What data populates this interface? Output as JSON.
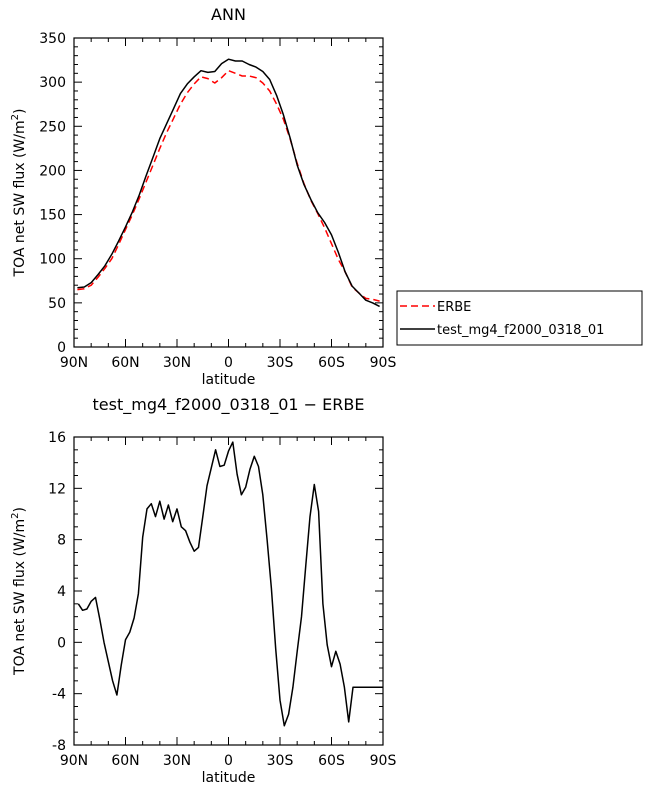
{
  "chart_data": [
    {
      "type": "line",
      "title": "ANN",
      "xlabel": "latitude",
      "ylabel": "TOA net SW flux (W/m²)",
      "xlim": [
        90,
        -90
      ],
      "ylim": [
        0,
        350
      ],
      "x_ticks": [
        {
          "value": 90,
          "label": "90N"
        },
        {
          "value": 60,
          "label": "60N"
        },
        {
          "value": 30,
          "label": "30N"
        },
        {
          "value": 0,
          "label": "0"
        },
        {
          "value": -30,
          "label": "30S"
        },
        {
          "value": -60,
          "label": "60S"
        },
        {
          "value": -90,
          "label": "90S"
        }
      ],
      "y_ticks": [
        0,
        50,
        100,
        150,
        200,
        250,
        300,
        350
      ],
      "legend_position": "right",
      "series": [
        {
          "name": "ERBE",
          "color": "#ff0000",
          "dash": "dashed",
          "x": [
            88,
            84,
            80,
            76,
            72,
            68,
            64,
            60,
            56,
            52,
            48,
            44,
            40,
            36,
            32,
            28,
            24,
            20,
            16,
            12,
            8,
            4,
            0,
            -4,
            -8,
            -12,
            -16,
            -20,
            -24,
            -28,
            -32,
            -36,
            -40,
            -44,
            -48,
            -52,
            -56,
            -60,
            -64,
            -68,
            -72,
            -76,
            -80,
            -84,
            -88
          ],
          "y": [
            65,
            66,
            70,
            79,
            89,
            100,
            116,
            133,
            150,
            168,
            187,
            206,
            225,
            243,
            259,
            275,
            288,
            298,
            306,
            304,
            299,
            305,
            313,
            310,
            307,
            307,
            305,
            299,
            290,
            275,
            258,
            235,
            208,
            185,
            166,
            151,
            135,
            117,
            99,
            85,
            68,
            61,
            55,
            54,
            52
          ]
        },
        {
          "name": "test_mg4_f2000_0318_01",
          "color": "#000000",
          "dash": "solid",
          "x": [
            88,
            84,
            80,
            76,
            72,
            68,
            64,
            60,
            56,
            52,
            48,
            44,
            40,
            36,
            32,
            28,
            24,
            20,
            16,
            12,
            8,
            4,
            0,
            -4,
            -8,
            -12,
            -16,
            -20,
            -24,
            -28,
            -32,
            -36,
            -40,
            -44,
            -48,
            -52,
            -56,
            -60,
            -64,
            -68,
            -72,
            -76,
            -80,
            -84,
            -88
          ],
          "y": [
            67,
            68,
            73,
            82,
            92,
            105,
            120,
            136,
            153,
            172,
            194,
            215,
            236,
            253,
            270,
            287,
            298,
            306,
            313,
            311,
            312,
            321,
            326,
            324,
            324,
            320,
            317,
            312,
            303,
            285,
            263,
            236,
            206,
            184,
            167,
            152,
            141,
            127,
            107,
            85,
            69,
            61,
            53,
            50,
            46
          ]
        }
      ]
    },
    {
      "type": "line",
      "title": "test_mg4_f2000_0318_01 − ERBE",
      "xlabel": "latitude",
      "ylabel": "TOA net SW flux (W/m²)",
      "xlim": [
        90,
        -90
      ],
      "ylim": [
        -8,
        16
      ],
      "x_ticks": [
        {
          "value": 90,
          "label": "90N"
        },
        {
          "value": 60,
          "label": "60N"
        },
        {
          "value": 30,
          "label": "30N"
        },
        {
          "value": 0,
          "label": "0"
        },
        {
          "value": -30,
          "label": "30S"
        },
        {
          "value": -60,
          "label": "60S"
        },
        {
          "value": -90,
          "label": "90S"
        }
      ],
      "y_ticks": [
        -8,
        -4,
        0,
        4,
        8,
        12,
        16
      ],
      "series": [
        {
          "color": "#000000",
          "dash": "solid",
          "x": [
            87.5,
            85,
            82.5,
            80,
            77.5,
            75,
            72.5,
            70,
            67.5,
            65,
            62.5,
            60,
            57.5,
            55,
            52.5,
            50,
            47.5,
            45,
            42.5,
            40,
            37.5,
            35,
            32.5,
            30,
            27.5,
            25,
            22.5,
            20,
            17.5,
            15,
            12.5,
            10,
            7.5,
            5,
            2.5,
            0,
            -2.5,
            -5,
            -7.5,
            -10,
            -12.5,
            -15,
            -17.5,
            -20,
            -22.5,
            -25,
            -27.5,
            -30,
            -32.5,
            -35,
            -37.5,
            -40,
            -42.5,
            -45,
            -47.5,
            -50,
            -52.5,
            -55,
            -57.5,
            -60,
            -62.5,
            -65,
            -67.5,
            -70,
            -72.5,
            -75,
            -77.5,
            -80,
            -82.5,
            -85,
            -87.5,
            -90
          ],
          "y": [
            3.0,
            2.5,
            2.6,
            3.2,
            3.5,
            1.8,
            0.0,
            -1.5,
            -3.0,
            -4.1,
            -1.8,
            0.2,
            0.8,
            1.9,
            3.8,
            8.2,
            10.4,
            10.8,
            9.8,
            11.0,
            9.6,
            10.7,
            9.4,
            10.4,
            9.0,
            8.7,
            7.8,
            7.1,
            7.4,
            9.8,
            12.2,
            13.6,
            15.0,
            13.7,
            13.8,
            14.9,
            15.6,
            13.1,
            11.5,
            12.1,
            13.5,
            14.5,
            13.7,
            11.5,
            8.0,
            4.2,
            -0.5,
            -4.5,
            -6.5,
            -5.6,
            -3.5,
            -0.7,
            2.0,
            6.0,
            9.8,
            12.3,
            10.2,
            3.0,
            -0.2,
            -1.9,
            -0.7,
            -1.7,
            -3.5,
            -6.2,
            -3.5,
            -3.5,
            -3.5,
            -3.5,
            -3.5,
            -3.5,
            -3.5,
            -3.5
          ]
        }
      ]
    }
  ]
}
